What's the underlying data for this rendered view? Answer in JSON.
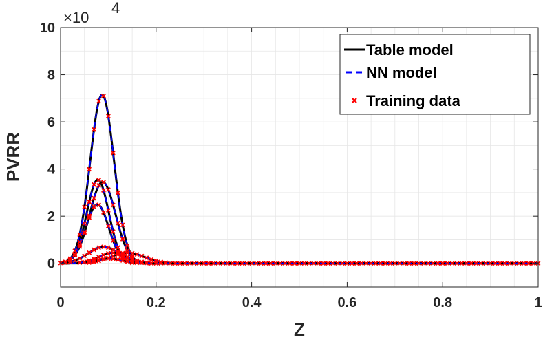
{
  "chart_data": {
    "type": "line",
    "xlabel": "Z",
    "ylabel": "PVRR",
    "xlim": [
      0,
      1
    ],
    "ylim": [
      -1,
      10
    ],
    "y_scale_factor_label": "×10",
    "y_scale_exponent": "4",
    "xticks": [
      0,
      0.2,
      0.4,
      0.6,
      0.8,
      1
    ],
    "xtick_labels": [
      "0",
      "0.2",
      "0.4",
      "0.6",
      "0.8",
      "1"
    ],
    "yticks": [
      0,
      2,
      4,
      6,
      8,
      10
    ],
    "ytick_labels": [
      "0",
      "2",
      "4",
      "6",
      "8",
      "10"
    ],
    "grid": true,
    "legend_position": "top-right",
    "legend": [
      {
        "label": "Table model",
        "style": "solid-line",
        "color": "#000000"
      },
      {
        "label": "NN model",
        "style": "dashed-line",
        "color": "#0000ff"
      },
      {
        "label": "Training data",
        "style": "x-marker",
        "color": "#ff0000"
      }
    ],
    "peaks": [
      {
        "peak_z": 0.087,
        "peak_value": 7.15,
        "width": 0.025
      },
      {
        "peak_z": 0.078,
        "peak_value": 3.55,
        "width": 0.023
      },
      {
        "peak_z": 0.088,
        "peak_value": 3.45,
        "width": 0.027
      },
      {
        "peak_z": 0.077,
        "peak_value": 2.5,
        "width": 0.024
      },
      {
        "peak_z": 0.09,
        "peak_value": 0.7,
        "width": 0.032
      },
      {
        "peak_z": 0.11,
        "peak_value": 0.45,
        "width": 0.03
      },
      {
        "peak_z": 0.14,
        "peak_value": 0.45,
        "width": 0.035
      },
      {
        "peak_z": 0.1,
        "peak_value": 0.2,
        "width": 0.03
      }
    ],
    "sample_spacing": 0.01
  }
}
